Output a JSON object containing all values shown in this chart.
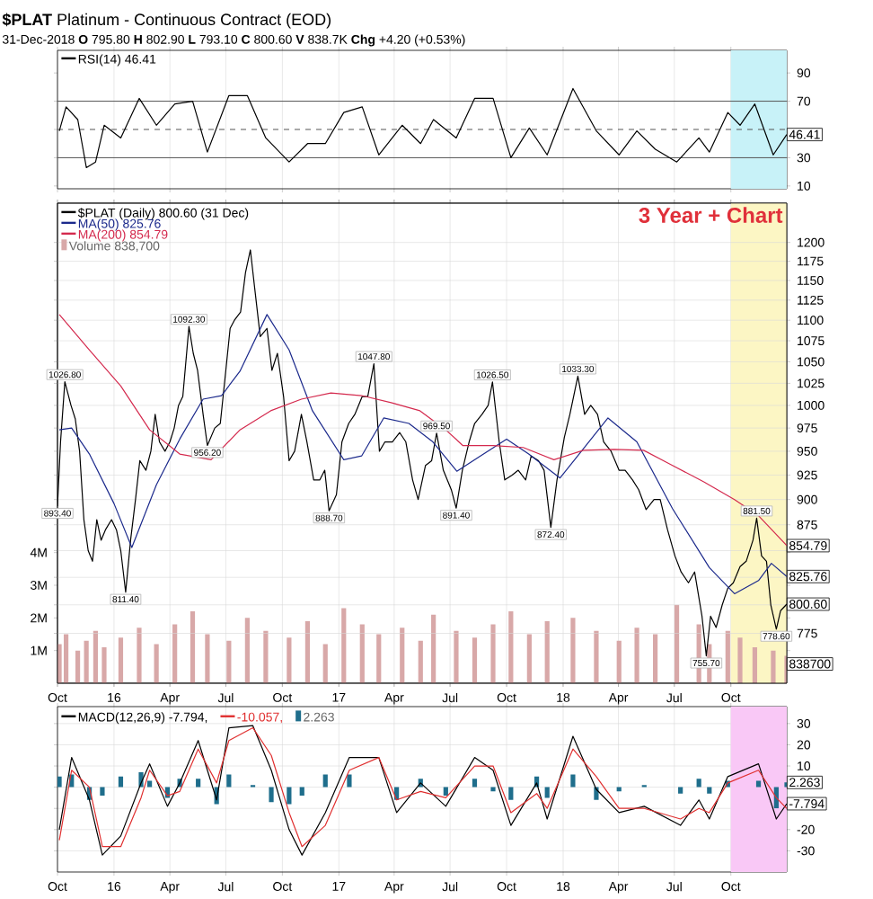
{
  "chart_data": [
    {
      "type": "line",
      "title": "**$PLAT** Platinum - Continuous Contract (EOD)",
      "subtitle": "31-Dec-2018 **O** 795.80 **H** 802.90 **L** 793.10 **C** 800.60 **V** 838.7K **Chg** +4.20 (+0.53%)",
      "x": [
        "2015-10-04",
        "2015-10-15",
        "2015-11-03",
        "2015-11-17",
        "2015-12-02",
        "2015-12-16",
        "2016-01-12",
        "2016-02-11",
        "2016-03-10",
        "2016-04-09",
        "2016-05-08",
        "2016-06-01",
        "2016-07-06",
        "2016-08-05",
        "2016-09-04",
        "2016-10-12",
        "2016-11-11",
        "2016-12-10",
        "2017-01-09",
        "2017-02-08",
        "2017-03-07",
        "2017-04-14",
        "2017-05-14",
        "2017-06-04",
        "2017-07-11",
        "2017-08-10",
        "2017-09-09",
        "2017-10-08",
        "2017-11-07",
        "2017-12-06",
        "2018-01-17",
        "2018-02-24",
        "2018-04-02",
        "2018-05-01",
        "2018-05-31",
        "2018-07-05",
        "2018-08-10",
        "2018-08-27",
        "2018-09-26",
        "2018-10-16",
        "2018-11-09",
        "2018-12-09",
        "2018-12-31"
      ],
      "series": [
        {
          "name": "RSI(14) 46.41",
          "color": "#000000",
          "values": [
            49,
            66,
            57,
            23,
            27,
            53,
            44,
            72,
            53,
            68,
            70,
            34,
            74,
            74,
            44,
            27,
            40,
            40,
            62,
            66,
            32,
            53,
            40,
            57,
            44,
            72,
            72,
            30,
            51,
            32,
            79,
            49,
            32,
            49,
            36,
            27,
            44,
            34,
            62,
            53,
            68,
            32,
            46.41
          ]
        }
      ],
      "xlim": [
        "2015-10-01",
        "2018-12-31"
      ],
      "ylim": [
        8,
        106
      ],
      "xticks": [
        {
          "value": "2015-10-01",
          "label": null
        },
        {
          "value": "2016-01-01",
          "label": null
        },
        {
          "value": "2016-04-01",
          "label": null
        },
        {
          "value": "2016-07-01",
          "label": null
        },
        {
          "value": "2016-10-01",
          "label": null
        },
        {
          "value": "2017-01-01",
          "label": null
        },
        {
          "value": "2017-04-01",
          "label": null
        },
        {
          "value": "2017-07-01",
          "label": null
        },
        {
          "value": "2017-10-01",
          "label": null
        },
        {
          "value": "2018-01-01",
          "label": null
        },
        {
          "value": "2018-04-01",
          "label": null
        },
        {
          "value": "2018-07-01",
          "label": null
        },
        {
          "value": "2018-10-01",
          "label": null
        }
      ],
      "yticks": [
        10,
        30,
        {
          "value": 50,
          "label": null
        },
        70,
        90
      ],
      "tick_labels": "y",
      "grid": "x",
      "legend": "top left",
      "ref_lines": [
        {
          "axis": "y",
          "value": 30
        },
        {
          "axis": "y",
          "value": 70
        },
        {
          "axis": "y",
          "value": 50,
          "line_style": "dashed"
        }
      ],
      "bands": [
        {
          "axis": "x",
          "from": "2018-10-01",
          "to": "2018-12-31",
          "color": "#c8f2f8"
        }
      ],
      "annotations": [
        {
          "text": "46.41",
          "x": "2018-12-31",
          "y": 46.41
        }
      ]
    },
    {
      "type": "line",
      "log": "y",
      "series": [
        {
          "name": "$PLAT (Daily) 800.60 (31 Dec)",
          "color": "#000000",
          "x": [
            "2015-10-01",
            "2015-10-06",
            "2015-10-13",
            "2015-10-23",
            "2015-10-30",
            "2015-11-06",
            "2015-11-13",
            "2015-11-20",
            "2015-11-27",
            "2015-12-04",
            "2015-12-11",
            "2015-12-18",
            "2015-12-28",
            "2016-01-05",
            "2016-01-12",
            "2016-01-20",
            "2016-01-28",
            "2016-02-05",
            "2016-02-12",
            "2016-02-22",
            "2016-03-01",
            "2016-03-08",
            "2016-03-15",
            "2016-03-24",
            "2016-04-01",
            "2016-04-08",
            "2016-04-15",
            "2016-04-22",
            "2016-05-02",
            "2016-05-09",
            "2016-05-16",
            "2016-05-25",
            "2016-06-01",
            "2016-06-13",
            "2016-06-22",
            "2016-07-01",
            "2016-07-08",
            "2016-07-15",
            "2016-07-25",
            "2016-08-02",
            "2016-08-10",
            "2016-08-17",
            "2016-08-26",
            "2016-09-06",
            "2016-09-14",
            "2016-09-23",
            "2016-10-03",
            "2016-10-12",
            "2016-10-21",
            "2016-11-01",
            "2016-11-10",
            "2016-11-21",
            "2016-12-01",
            "2016-12-09",
            "2016-12-16",
            "2016-12-28",
            "2017-01-06",
            "2017-01-17",
            "2017-01-27",
            "2017-02-08",
            "2017-02-17",
            "2017-02-27",
            "2017-03-08",
            "2017-03-17",
            "2017-03-29",
            "2017-04-10",
            "2017-04-20",
            "2017-05-01",
            "2017-05-10",
            "2017-05-22",
            "2017-06-01",
            "2017-06-09",
            "2017-06-20",
            "2017-07-03",
            "2017-07-11",
            "2017-07-21",
            "2017-08-01",
            "2017-08-10",
            "2017-08-22",
            "2017-09-01",
            "2017-09-08",
            "2017-09-19",
            "2017-09-28",
            "2017-10-10",
            "2017-10-20",
            "2017-11-01",
            "2017-11-10",
            "2017-11-22",
            "2017-12-01",
            "2017-12-12",
            "2017-12-22",
            "2018-01-03",
            "2018-01-12",
            "2018-01-25",
            "2018-02-05",
            "2018-02-15",
            "2018-02-26",
            "2018-03-08",
            "2018-03-20",
            "2018-04-02",
            "2018-04-12",
            "2018-04-24",
            "2018-05-04",
            "2018-05-16",
            "2018-05-29",
            "2018-06-08",
            "2018-06-20",
            "2018-07-02",
            "2018-07-12",
            "2018-07-24",
            "2018-08-03",
            "2018-08-15",
            "2018-08-22",
            "2018-08-29",
            "2018-09-07",
            "2018-09-17",
            "2018-09-26",
            "2018-10-05",
            "2018-10-16",
            "2018-10-26",
            "2018-11-06",
            "2018-11-12",
            "2018-11-20",
            "2018-11-28",
            "2018-12-05",
            "2018-12-14",
            "2018-12-21",
            "2018-12-31"
          ],
          "values": [
            893.4,
            960,
            1026.8,
            1000,
            985,
            950,
            880,
            850,
            840,
            880,
            860,
            870,
            880,
            870,
            850,
            811.4,
            860,
            900,
            940,
            930,
            950,
            990,
            960,
            950,
            960,
            975,
            1000,
            1010,
            1092.3,
            1060,
            1040,
            990,
            956.2,
            975,
            980,
            1040,
            1090,
            1100,
            1110,
            1160,
            1190,
            1140,
            1080,
            1090,
            1040,
            1060,
            1010,
            940,
            950,
            990,
            960,
            920,
            920,
            930,
            888.7,
            905,
            960,
            980,
            990,
            1010,
            1010,
            1047.8,
            950,
            960,
            960,
            970,
            960,
            920,
            900,
            935,
            940,
            969.5,
            930,
            910,
            891.4,
            930,
            960,
            980,
            990,
            1000,
            1026.5,
            960,
            920,
            925,
            930,
            920,
            945,
            940,
            930,
            872.4,
            920,
            965,
            990,
            1033.3,
            990,
            1000,
            990,
            960,
            950,
            930,
            930,
            920,
            910,
            890,
            900,
            900,
            870,
            845,
            830,
            820,
            830,
            790,
            755.7,
            790,
            780,
            800,
            815,
            820,
            835,
            840,
            860,
            881.5,
            845,
            840,
            800,
            778.6,
            795,
            800.6
          ]
        },
        {
          "name": "MA(50) 825.76",
          "color": "#1c2a8c",
          "x": [
            "2015-10-04",
            "2015-10-24",
            "2015-11-22",
            "2016-01-01",
            "2016-01-30",
            "2016-03-10",
            "2016-04-17",
            "2016-05-25",
            "2016-06-24",
            "2016-07-24",
            "2016-09-06",
            "2016-10-12",
            "2016-11-19",
            "2017-01-09",
            "2017-02-07",
            "2017-03-15",
            "2017-04-25",
            "2017-06-03",
            "2017-07-12",
            "2017-10-01",
            "2017-11-06",
            "2017-12-27",
            "2018-03-15",
            "2018-05-01",
            "2018-06-28",
            "2018-08-27",
            "2018-10-07",
            "2018-11-15",
            "2018-12-06",
            "2018-12-31"
          ],
          "values": [
            973,
            975,
            947,
            896,
            853,
            915,
            963,
            1007,
            1011,
            1039,
            1107,
            1064,
            994,
            941,
            945,
            986,
            980,
            960,
            929,
            963,
            947,
            922,
            986,
            960,
            891,
            834,
            810,
            822,
            838,
            825.76
          ]
        },
        {
          "name": "MA(200) 854.79",
          "color": "#d42a4e",
          "x": [
            "2015-10-04",
            "2015-11-22",
            "2016-01-12",
            "2016-02-28",
            "2016-04-17",
            "2016-06-07",
            "2016-07-24",
            "2016-09-12",
            "2016-11-01",
            "2016-12-19",
            "2017-02-07",
            "2017-03-27",
            "2017-05-13",
            "2017-06-24",
            "2017-07-22",
            "2017-09-09",
            "2017-10-28",
            "2017-12-17",
            "2018-02-03",
            "2018-03-25",
            "2018-05-12",
            "2018-06-28",
            "2018-08-18",
            "2018-10-07",
            "2018-11-15",
            "2018-12-31"
          ],
          "values": [
            1107,
            1064,
            1022,
            973,
            947,
            941,
            973,
            994,
            1007,
            1014,
            1011,
            1003,
            994,
            973,
            956,
            956,
            954,
            941,
            951,
            952,
            951,
            935,
            918,
            900,
            884,
            854.79
          ]
        },
        {
          "name": "Volume 838,700",
          "type": "bar",
          "axis": "y2",
          "color": "#d8a8a8",
          "x": [
            "2015-10-04",
            "2015-10-15",
            "2015-11-03",
            "2015-11-17",
            "2015-12-02",
            "2015-12-16",
            "2016-01-12",
            "2016-02-11",
            "2016-03-10",
            "2016-04-09",
            "2016-05-08",
            "2016-06-01",
            "2016-07-06",
            "2016-08-05",
            "2016-09-04",
            "2016-10-12",
            "2016-11-11",
            "2016-12-10",
            "2017-01-09",
            "2017-02-08",
            "2017-03-07",
            "2017-04-14",
            "2017-05-14",
            "2017-06-04",
            "2017-07-11",
            "2017-08-10",
            "2017-09-09",
            "2017-10-08",
            "2017-11-07",
            "2017-12-06",
            "2018-01-17",
            "2018-02-24",
            "2018-04-02",
            "2018-05-01",
            "2018-05-31",
            "2018-07-05",
            "2018-08-10",
            "2018-08-27",
            "2018-09-26",
            "2018-10-16",
            "2018-11-09",
            "2018-12-09",
            "2018-12-31"
          ],
          "values": [
            1.2,
            1.5,
            1.0,
            1.3,
            1.6,
            1.1,
            1.4,
            1.7,
            1.2,
            1.8,
            2.2,
            1.5,
            1.3,
            2.0,
            1.6,
            1.4,
            1.9,
            1.2,
            2.3,
            1.8,
            1.5,
            1.7,
            1.3,
            2.1,
            1.6,
            1.4,
            1.8,
            2.2,
            1.5,
            1.9,
            2.0,
            1.6,
            1.3,
            1.7,
            1.5,
            2.4,
            1.8,
            1.2,
            1.6,
            1.4,
            1.1,
            1.0,
            0.8387
          ]
        }
      ],
      "xlim": [
        "2015-10-01",
        "2018-12-31"
      ],
      "ylim": [
        733,
        1254
      ],
      "y2lim": [
        0,
        14.7
      ],
      "xticks": [
        {
          "value": "2015-10-01",
          "label": "Oct"
        },
        {
          "value": "2016-01-01",
          "label": "16"
        },
        {
          "value": "2016-04-01",
          "label": "Apr"
        },
        {
          "value": "2016-07-01",
          "label": "Jul"
        },
        {
          "value": "2016-10-01",
          "label": "Oct"
        },
        {
          "value": "2017-01-01",
          "label": "17"
        },
        {
          "value": "2017-04-01",
          "label": "Apr"
        },
        {
          "value": "2017-07-01",
          "label": "Jul"
        },
        {
          "value": "2017-10-01",
          "label": "Oct"
        },
        {
          "value": "2018-01-01",
          "label": "18"
        },
        {
          "value": "2018-04-01",
          "label": "Apr"
        },
        {
          "value": "2018-07-01",
          "label": "Jul"
        },
        {
          "value": "2018-10-01",
          "label": "Oct"
        }
      ],
      "yticks": [
        775,
        {
          "value": 800,
          "label": null
        },
        {
          "value": 825,
          "label": null
        },
        {
          "value": 850,
          "label": null
        },
        875,
        900,
        925,
        950,
        975,
        1000,
        1025,
        1050,
        1075,
        1100,
        1125,
        1150,
        1175,
        1200
      ],
      "y2ticks": [
        {
          "value": 1,
          "label": "1M"
        },
        {
          "value": 2,
          "label": "2M"
        },
        {
          "value": 3,
          "label": "3M"
        },
        {
          "value": 4,
          "label": "4M"
        }
      ],
      "grid": true,
      "legend": "top left",
      "bands": [
        {
          "axis": "x",
          "from": "2018-10-01",
          "to": "2018-12-31",
          "color": "#fcf6c4"
        }
      ],
      "annotations": [
        "3 Year + Chart",
        {
          "text": "893.40",
          "x": "2015-10-01",
          "y": 893.4
        },
        {
          "text": "1026.80",
          "x": "2015-10-13",
          "y": 1026.8
        },
        {
          "text": "811.40",
          "x": "2016-01-20",
          "y": 811.4
        },
        {
          "text": "1092.30",
          "x": "2016-05-02",
          "y": 1092.3
        },
        {
          "text": "956.20",
          "x": "2016-06-01",
          "y": 956.2
        },
        {
          "text": "888.70",
          "x": "2016-12-16",
          "y": 888.7
        },
        {
          "text": "1047.80",
          "x": "2017-02-27",
          "y": 1047.8
        },
        {
          "text": "969.50",
          "x": "2017-06-09",
          "y": 969.5
        },
        {
          "text": "891.40",
          "x": "2017-07-11",
          "y": 891.4
        },
        {
          "text": "1026.50",
          "x": "2017-09-08",
          "y": 1026.5
        },
        {
          "text": "872.40",
          "x": "2017-12-12",
          "y": 872.4
        },
        {
          "text": "1033.30",
          "x": "2018-01-25",
          "y": 1033.3
        },
        {
          "text": "755.70",
          "x": "2018-08-22",
          "y": 755.7
        },
        {
          "text": "881.50",
          "x": "2018-11-12",
          "y": 881.5
        },
        {
          "text": "778.60",
          "x": "2018-12-14",
          "y": 778.6
        },
        {
          "text": "854.79",
          "x": "2018-12-31",
          "y": 854.79
        },
        {
          "text": "825.76",
          "x": "2018-12-31",
          "y": 825.76
        },
        {
          "text": "800.60",
          "x": "2018-12-31",
          "y": 800.6
        },
        "838700"
      ]
    },
    {
      "type": "line",
      "x": [
        "2015-10-04",
        "2015-10-24",
        "2015-11-22",
        "2015-12-13",
        "2016-01-12",
        "2016-02-14",
        "2016-02-28",
        "2016-03-28",
        "2016-04-17",
        "2016-05-17",
        "2016-06-16",
        "2016-07-06",
        "2016-08-14",
        "2016-09-13",
        "2016-10-12",
        "2016-11-02",
        "2016-12-10",
        "2017-01-18",
        "2017-03-07",
        "2017-04-05",
        "2017-05-14",
        "2017-06-24",
        "2017-08-10",
        "2017-09-09",
        "2017-10-08",
        "2017-11-19",
        "2017-12-06",
        "2018-01-17",
        "2018-02-24",
        "2018-04-02",
        "2018-05-13",
        "2018-07-11",
        "2018-08-10",
        "2018-08-27",
        "2018-09-26",
        "2018-11-15",
        "2018-12-14",
        "2018-12-31"
      ],
      "series": [
        {
          "name": "MACD(12,26,9) -7.794,",
          "color": "#000000",
          "values": [
            -20,
            14,
            -6,
            -32,
            -23,
            2,
            11,
            -9,
            2,
            22,
            -6,
            28,
            29,
            8,
            -20,
            -32,
            -12,
            14,
            14,
            -12,
            2,
            -9,
            14,
            8,
            -18,
            2,
            -15,
            24,
            -1,
            -12,
            -9,
            -18,
            -6,
            -15,
            5,
            11,
            -15,
            -7.794
          ]
        },
        {
          "name": "-10.057,",
          "color": "#e03030",
          "values": [
            -25,
            8,
            0,
            -28,
            -28,
            -5,
            8,
            -4,
            -2,
            18,
            2,
            22,
            28,
            15,
            -12,
            -28,
            -18,
            8,
            14,
            -6,
            -2,
            -5,
            10,
            10,
            -12,
            -3,
            -10,
            18,
            5,
            -10,
            -10,
            -15,
            -10,
            -12,
            2,
            8,
            -5,
            -10.057
          ]
        },
        {
          "name": "2.263",
          "type": "bar",
          "color": "#1f6e8c",
          "values": [
            5,
            6,
            -6,
            -4,
            5,
            7,
            3,
            -5,
            4,
            4,
            -8,
            6,
            1,
            -7,
            -8,
            -4,
            6,
            6,
            0,
            -6,
            4,
            -4,
            4,
            -2,
            -6,
            5,
            -5,
            6,
            -6,
            -2,
            1,
            -3,
            4,
            -3,
            3,
            3,
            -10,
            2.263
          ]
        }
      ],
      "xlim": [
        "2015-10-01",
        "2018-12-31"
      ],
      "ylim": [
        -40,
        38
      ],
      "xticks": [
        {
          "value": "2015-10-01",
          "label": "Oct"
        },
        {
          "value": "2016-01-01",
          "label": "16"
        },
        {
          "value": "2016-04-01",
          "label": "Apr"
        },
        {
          "value": "2016-07-01",
          "label": "Jul"
        },
        {
          "value": "2016-10-01",
          "label": "Oct"
        },
        {
          "value": "2017-01-01",
          "label": "17"
        },
        {
          "value": "2017-04-01",
          "label": "Apr"
        },
        {
          "value": "2017-07-01",
          "label": "Jul"
        },
        {
          "value": "2017-10-01",
          "label": "Oct"
        },
        {
          "value": "2018-01-01",
          "label": "18"
        },
        {
          "value": "2018-04-01",
          "label": "Apr"
        },
        {
          "value": "2018-07-01",
          "label": "Jul"
        },
        {
          "value": "2018-10-01",
          "label": "Oct"
        }
      ],
      "yticks": [
        -30,
        -20,
        {
          "value": -10,
          "label": null
        },
        {
          "value": 0,
          "label": null
        },
        10,
        20,
        30
      ],
      "grid": true,
      "legend": "top left",
      "bands": [
        {
          "axis": "x",
          "from": "2018-10-01",
          "to": "2018-12-31",
          "color": "#f9c8f6"
        }
      ],
      "annotations": [
        {
          "text": "2.263",
          "x": "2018-12-31",
          "y": 2.263
        },
        {
          "text": "-7.794",
          "x": "2018-12-31",
          "y": -7.794
        }
      ]
    }
  ]
}
